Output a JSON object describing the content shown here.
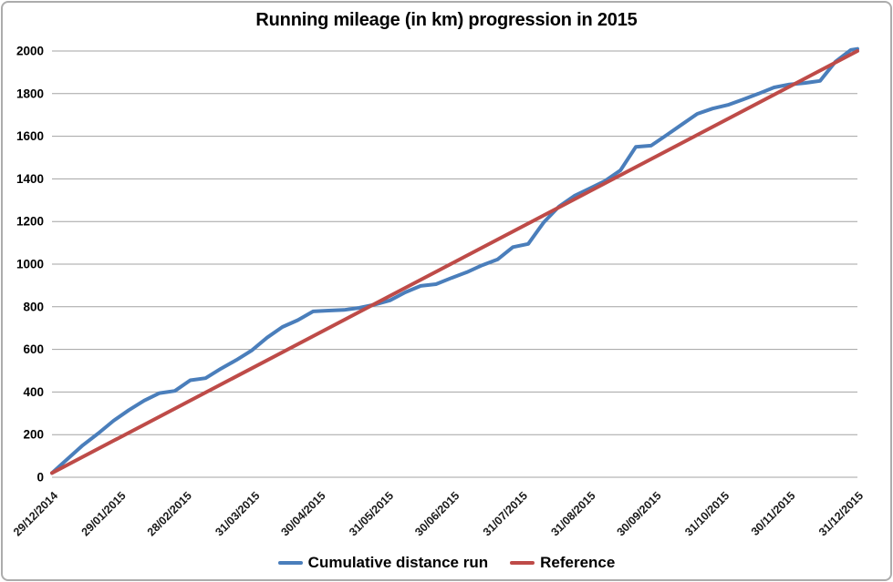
{
  "title": "Running mileage (in km) progression in 2015",
  "colors": {
    "series_blue": "#4A7EBB",
    "series_red": "#BE4B48",
    "gridline": "#A3A3A3",
    "axis_text": "#000000",
    "border": "#ACACAC",
    "background": "#FFFFFF"
  },
  "chart_data": {
    "type": "line",
    "title": "Running mileage (in km) progression in 2015",
    "xlabel": "",
    "ylabel": "",
    "ylim": [
      0,
      2000
    ],
    "y_tick_step": 200,
    "y_ticks": [
      0,
      200,
      400,
      600,
      800,
      1000,
      1200,
      1400,
      1600,
      1800,
      2000
    ],
    "grid": "horizontal-only",
    "legend_position": "bottom",
    "x_start_date": "29/12/2014",
    "x_end_date": "31/12/2015",
    "x_tick_labels": [
      "29/12/2014",
      "29/01/2015",
      "28/02/2015",
      "31/03/2015",
      "30/04/2015",
      "31/05/2015",
      "30/06/2015",
      "31/07/2015",
      "31/08/2015",
      "30/09/2015",
      "31/10/2015",
      "30/11/2015",
      "31/12/2015"
    ],
    "series": [
      {
        "name": "Cumulative distance run",
        "color": "#4A7EBB",
        "points": [
          {
            "date": "29/12/2014",
            "km": 20
          },
          {
            "date": "05/01/2015",
            "km": 85
          },
          {
            "date": "12/01/2015",
            "km": 150
          },
          {
            "date": "19/01/2015",
            "km": 205
          },
          {
            "date": "26/01/2015",
            "km": 265
          },
          {
            "date": "02/02/2015",
            "km": 315
          },
          {
            "date": "09/02/2015",
            "km": 360
          },
          {
            "date": "16/02/2015",
            "km": 395
          },
          {
            "date": "23/02/2015",
            "km": 405
          },
          {
            "date": "02/03/2015",
            "km": 455
          },
          {
            "date": "09/03/2015",
            "km": 465
          },
          {
            "date": "16/03/2015",
            "km": 510
          },
          {
            "date": "23/03/2015",
            "km": 550
          },
          {
            "date": "30/03/2015",
            "km": 595
          },
          {
            "date": "06/04/2015",
            "km": 655
          },
          {
            "date": "13/04/2015",
            "km": 705
          },
          {
            "date": "20/04/2015",
            "km": 737
          },
          {
            "date": "27/04/2015",
            "km": 778
          },
          {
            "date": "04/05/2015",
            "km": 782
          },
          {
            "date": "11/05/2015",
            "km": 785
          },
          {
            "date": "18/05/2015",
            "km": 795
          },
          {
            "date": "25/05/2015",
            "km": 810
          },
          {
            "date": "01/06/2015",
            "km": 830
          },
          {
            "date": "08/06/2015",
            "km": 868
          },
          {
            "date": "15/06/2015",
            "km": 898
          },
          {
            "date": "22/06/2015",
            "km": 906
          },
          {
            "date": "29/06/2015",
            "km": 935
          },
          {
            "date": "06/07/2015",
            "km": 962
          },
          {
            "date": "13/07/2015",
            "km": 995
          },
          {
            "date": "20/07/2015",
            "km": 1022
          },
          {
            "date": "27/07/2015",
            "km": 1080
          },
          {
            "date": "03/08/2015",
            "km": 1095
          },
          {
            "date": "10/08/2015",
            "km": 1195
          },
          {
            "date": "17/08/2015",
            "km": 1270
          },
          {
            "date": "24/08/2015",
            "km": 1320
          },
          {
            "date": "31/08/2015",
            "km": 1355
          },
          {
            "date": "07/09/2015",
            "km": 1390
          },
          {
            "date": "14/09/2015",
            "km": 1440
          },
          {
            "date": "21/09/2015",
            "km": 1550
          },
          {
            "date": "28/09/2015",
            "km": 1556
          },
          {
            "date": "05/10/2015",
            "km": 1605
          },
          {
            "date": "12/10/2015",
            "km": 1655
          },
          {
            "date": "19/10/2015",
            "km": 1705
          },
          {
            "date": "26/10/2015",
            "km": 1730
          },
          {
            "date": "02/11/2015",
            "km": 1747
          },
          {
            "date": "09/11/2015",
            "km": 1773
          },
          {
            "date": "16/11/2015",
            "km": 1800
          },
          {
            "date": "23/11/2015",
            "km": 1829
          },
          {
            "date": "30/11/2015",
            "km": 1843
          },
          {
            "date": "07/12/2015",
            "km": 1850
          },
          {
            "date": "14/12/2015",
            "km": 1860
          },
          {
            "date": "21/12/2015",
            "km": 1950
          },
          {
            "date": "28/12/2015",
            "km": 2005
          },
          {
            "date": "31/12/2015",
            "km": 2010
          }
        ]
      },
      {
        "name": "Reference",
        "color": "#BE4B48",
        "points": [
          {
            "date": "29/12/2014",
            "km": 20
          },
          {
            "date": "31/12/2015",
            "km": 2000
          }
        ]
      }
    ]
  }
}
